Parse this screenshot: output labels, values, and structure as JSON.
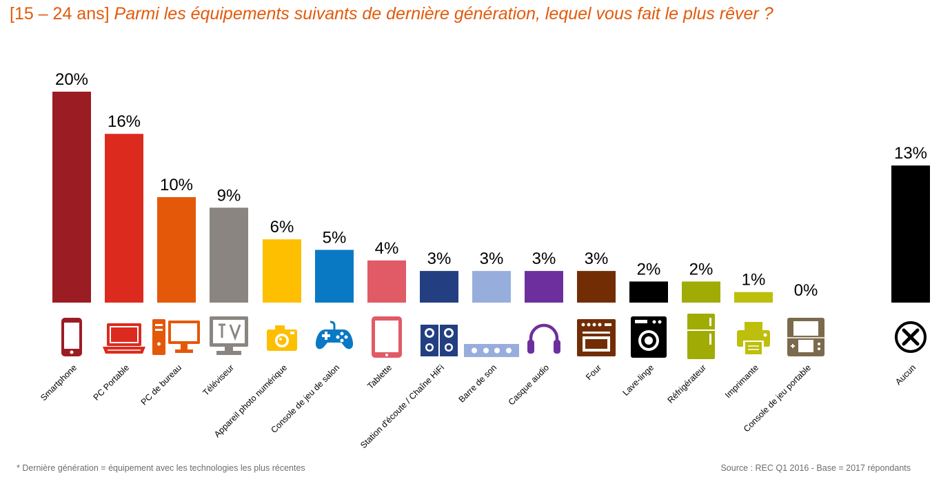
{
  "title": {
    "prefix": "[15 – 24 ans]",
    "question": "Parmi les équipements suivants de dernière génération, lequel vous fait le plus rêver ?"
  },
  "chart_data": {
    "type": "bar",
    "categories": [
      "Smartphone",
      "PC Portable",
      "PC de bureau",
      "Téléviseur",
      "Appareil photo numérique",
      "Console de jeu de salon",
      "Tablette",
      "Station d'écoute / Chaîne HiFi",
      "Barre de son",
      "Casque audio",
      "Four",
      "Lave-linge",
      "Réfrigérateur",
      "Imprimante",
      "Console de jeu portable",
      "Aucun"
    ],
    "values": [
      20,
      16,
      10,
      9,
      6,
      5,
      4,
      3,
      3,
      3,
      3,
      2,
      2,
      1,
      0,
      13
    ],
    "value_labels": [
      "20%",
      "16%",
      "10%",
      "9%",
      "6%",
      "5%",
      "4%",
      "3%",
      "3%",
      "3%",
      "3%",
      "2%",
      "2%",
      "1%",
      "0%",
      "13%"
    ],
    "unit": "%",
    "colors": [
      "#9c1c24",
      "#dc2b1e",
      "#e4580a",
      "#8a8580",
      "#fdbf00",
      "#0a79c4",
      "#e05b66",
      "#233f82",
      "#97aedd",
      "#6d2f9d",
      "#722d05",
      "#000000",
      "#a0ac05",
      "#bdbf0c",
      "#7b6a4d",
      "#000000"
    ],
    "icons": [
      "smartphone-icon",
      "laptop-icon",
      "desktop-pc-icon",
      "tv-icon",
      "camera-icon",
      "gamepad-icon",
      "tablet-icon",
      "hifi-speakers-icon",
      "soundbar-icon",
      "headphones-icon",
      "oven-icon",
      "washing-machine-icon",
      "refrigerator-icon",
      "printer-icon",
      "handheld-console-icon",
      "none-icon"
    ],
    "ylim": [
      0,
      20
    ],
    "grid": false,
    "legend": "none",
    "xlabel": "",
    "ylabel": ""
  },
  "footnote": "* Dernière génération = équipement avec les technologies les plus récentes",
  "source": "Source : REC Q1 2016 - Base = 2017 répondants"
}
